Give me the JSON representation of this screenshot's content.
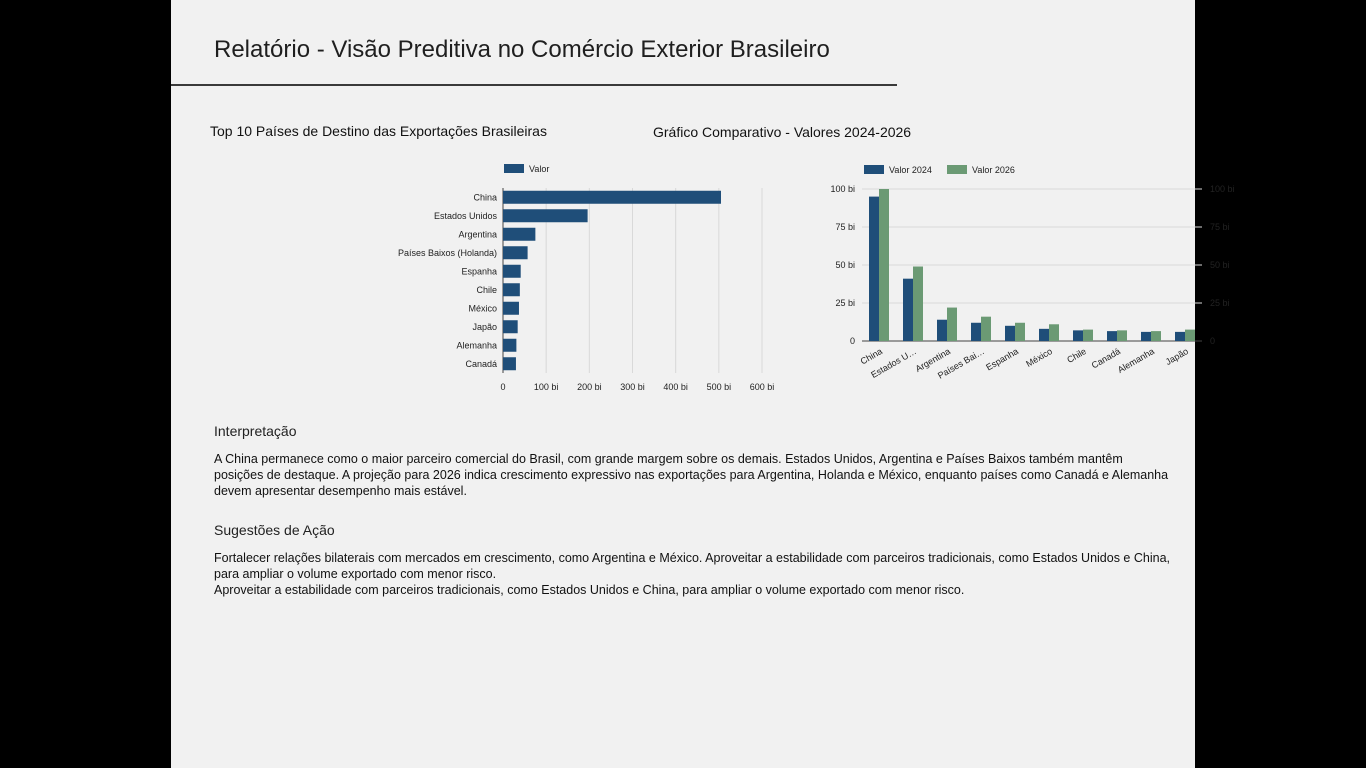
{
  "report": {
    "title": "Relatório - Visão Preditiva no Comércio Exterior Brasileiro"
  },
  "colors": {
    "series_2024": "#1f4e79",
    "series_2026": "#6b9a74",
    "grid": "#d9d9d9",
    "axis": "#444444"
  },
  "chart_data": [
    {
      "type": "bar",
      "orientation": "horizontal",
      "title": "Top 10 Países de Destino das Exportações Brasileiras",
      "categories": [
        "China",
        "Estados Unidos",
        "Argentina",
        "Países Baixos (Holanda)",
        "Espanha",
        "Chile",
        "México",
        "Japão",
        "Alemanha",
        "Canadá"
      ],
      "series": [
        {
          "name": "Valor",
          "values": [
            505,
            196,
            75,
            57,
            41,
            39,
            37,
            34,
            31,
            30
          ]
        }
      ],
      "xlim": [
        0,
        600
      ],
      "xticks": [
        "0",
        "100 bi",
        "200 bi",
        "300 bi",
        "400 bi",
        "500 bi",
        "600 bi"
      ],
      "grid": true,
      "legend": "top"
    },
    {
      "type": "bar",
      "title": "Gráfico Comparativo - Valores 2024-2026",
      "categories": [
        "China",
        "Estados U…",
        "Argentina",
        "Países Bai…",
        "Espanha",
        "México",
        "Chile",
        "Canadá",
        "Alemanha",
        "Japão"
      ],
      "series": [
        {
          "name": "Valor 2024",
          "values": [
            95,
            41,
            14,
            12,
            10,
            8,
            7,
            6.5,
            6,
            6
          ]
        },
        {
          "name": "Valor 2026",
          "values": [
            100,
            49,
            22,
            16,
            12,
            11,
            7.5,
            7,
            6.5,
            7.5
          ]
        }
      ],
      "ylim": [
        0,
        100
      ],
      "yticks": [
        "0",
        "25 bi",
        "50 bi",
        "75 bi",
        "100 bi"
      ],
      "grid": true,
      "legend": "top"
    }
  ],
  "interpretation": {
    "heading": "Interpretação",
    "text": "A China permanece como o maior parceiro comercial do Brasil, com grande margem sobre os demais. Estados Unidos, Argentina e Países Baixos também mantêm posições de destaque. A projeção para 2026 indica crescimento expressivo nas exportações para Argentina, Holanda e México, enquanto países como Canadá e Alemanha devem apresentar desempenho mais estável."
  },
  "actions": {
    "heading": "Sugestões de Ação",
    "text": "Fortalecer relações bilaterais com mercados em crescimento, como Argentina e México. Aproveitar a estabilidade com parceiros tradicionais, como Estados Unidos e China, para ampliar o volume exportado com menor risco.",
    "text_2": "Aproveitar a estabilidade com parceiros tradicionais, como Estados Unidos e China, para ampliar o volume exportado com menor risco."
  }
}
